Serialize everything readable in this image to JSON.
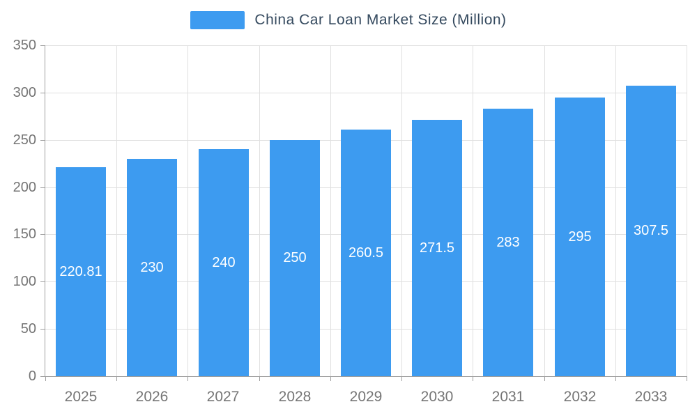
{
  "colors": {
    "bar": "#3d9bf0",
    "title_text": "#34495e",
    "axis_text": "#757575",
    "gridline": "#e0e0e0",
    "axis_line": "#9e9e9e",
    "bar_label_text": "#ffffff"
  },
  "legend": {
    "label": "China Car Loan Market Size (Million)"
  },
  "chart_data": {
    "type": "bar",
    "title": "China Car Loan Market Size (Million)",
    "categories": [
      "2025",
      "2026",
      "2027",
      "2028",
      "2029",
      "2030",
      "2031",
      "2032",
      "2033"
    ],
    "values": [
      220.81,
      230,
      240,
      250,
      260.5,
      271.5,
      283,
      295,
      307.5
    ],
    "value_labels": [
      "220.81",
      "230",
      "240",
      "250",
      "260.5",
      "271.5",
      "283",
      "295",
      "307.5"
    ],
    "xlabel": "",
    "ylabel": "",
    "ylim": [
      0,
      350
    ],
    "ytick_step": 50,
    "yticks": [
      "0",
      "50",
      "100",
      "150",
      "200",
      "250",
      "300",
      "350"
    ],
    "grid": "on",
    "legend_position": "top-center"
  }
}
